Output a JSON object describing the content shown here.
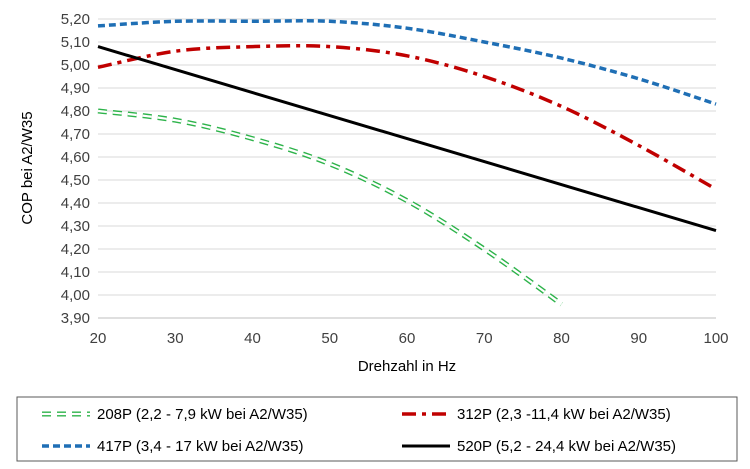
{
  "chart_data": {
    "type": "line",
    "title": "",
    "xlabel": "Drehzahl in Hz",
    "ylabel": "COP bei A2/W35",
    "xlim": [
      20,
      100
    ],
    "ylim": [
      3.9,
      5.2
    ],
    "x_ticks": [
      20,
      30,
      40,
      50,
      60,
      70,
      80,
      90,
      100
    ],
    "x_tick_labels": [
      "20",
      "30",
      "40",
      "50",
      "60",
      "70",
      "80",
      "90",
      "100"
    ],
    "y_ticks": [
      3.9,
      4.0,
      4.1,
      4.2,
      4.3,
      4.4,
      4.5,
      4.6,
      4.7,
      4.8,
      4.9,
      5.0,
      5.1,
      5.2
    ],
    "y_tick_labels": [
      "3,90",
      "4,00",
      "4,10",
      "4,20",
      "4,30",
      "4,40",
      "4,50",
      "4,60",
      "4,70",
      "4,80",
      "4,90",
      "5,00",
      "5,10",
      "5,20"
    ],
    "grid": "horizontal",
    "legend_position": "bottom",
    "series": [
      {
        "name": "208P (2,2 - 7,9 kW bei A2/W35)",
        "color": "#2db34a",
        "style": "dash-outline",
        "x": [
          20,
          30,
          40,
          50,
          60,
          70,
          80
        ],
        "values": [
          4.8,
          4.76,
          4.68,
          4.57,
          4.41,
          4.2,
          3.96
        ]
      },
      {
        "name": "312P (2,3 -11,4 kW bei A2/W35)",
        "color": "#c00000",
        "style": "dash-dot",
        "x": [
          20,
          30,
          40,
          50,
          60,
          70,
          80,
          90,
          100
        ],
        "values": [
          4.99,
          5.06,
          5.08,
          5.08,
          5.04,
          4.95,
          4.82,
          4.65,
          4.46
        ]
      },
      {
        "name": "417P (3,4 - 17 kW bei A2/W35)",
        "color": "#1f6fb5",
        "style": "dash",
        "x": [
          20,
          30,
          40,
          50,
          60,
          70,
          80,
          90,
          100
        ],
        "values": [
          5.17,
          5.19,
          5.19,
          5.19,
          5.16,
          5.1,
          5.03,
          4.94,
          4.83
        ]
      },
      {
        "name": "520P (5,2 - 24,4 kW bei A2/W35)",
        "color": "#000000",
        "style": "solid",
        "x": [
          20,
          100
        ],
        "values": [
          5.08,
          4.28
        ]
      }
    ]
  }
}
